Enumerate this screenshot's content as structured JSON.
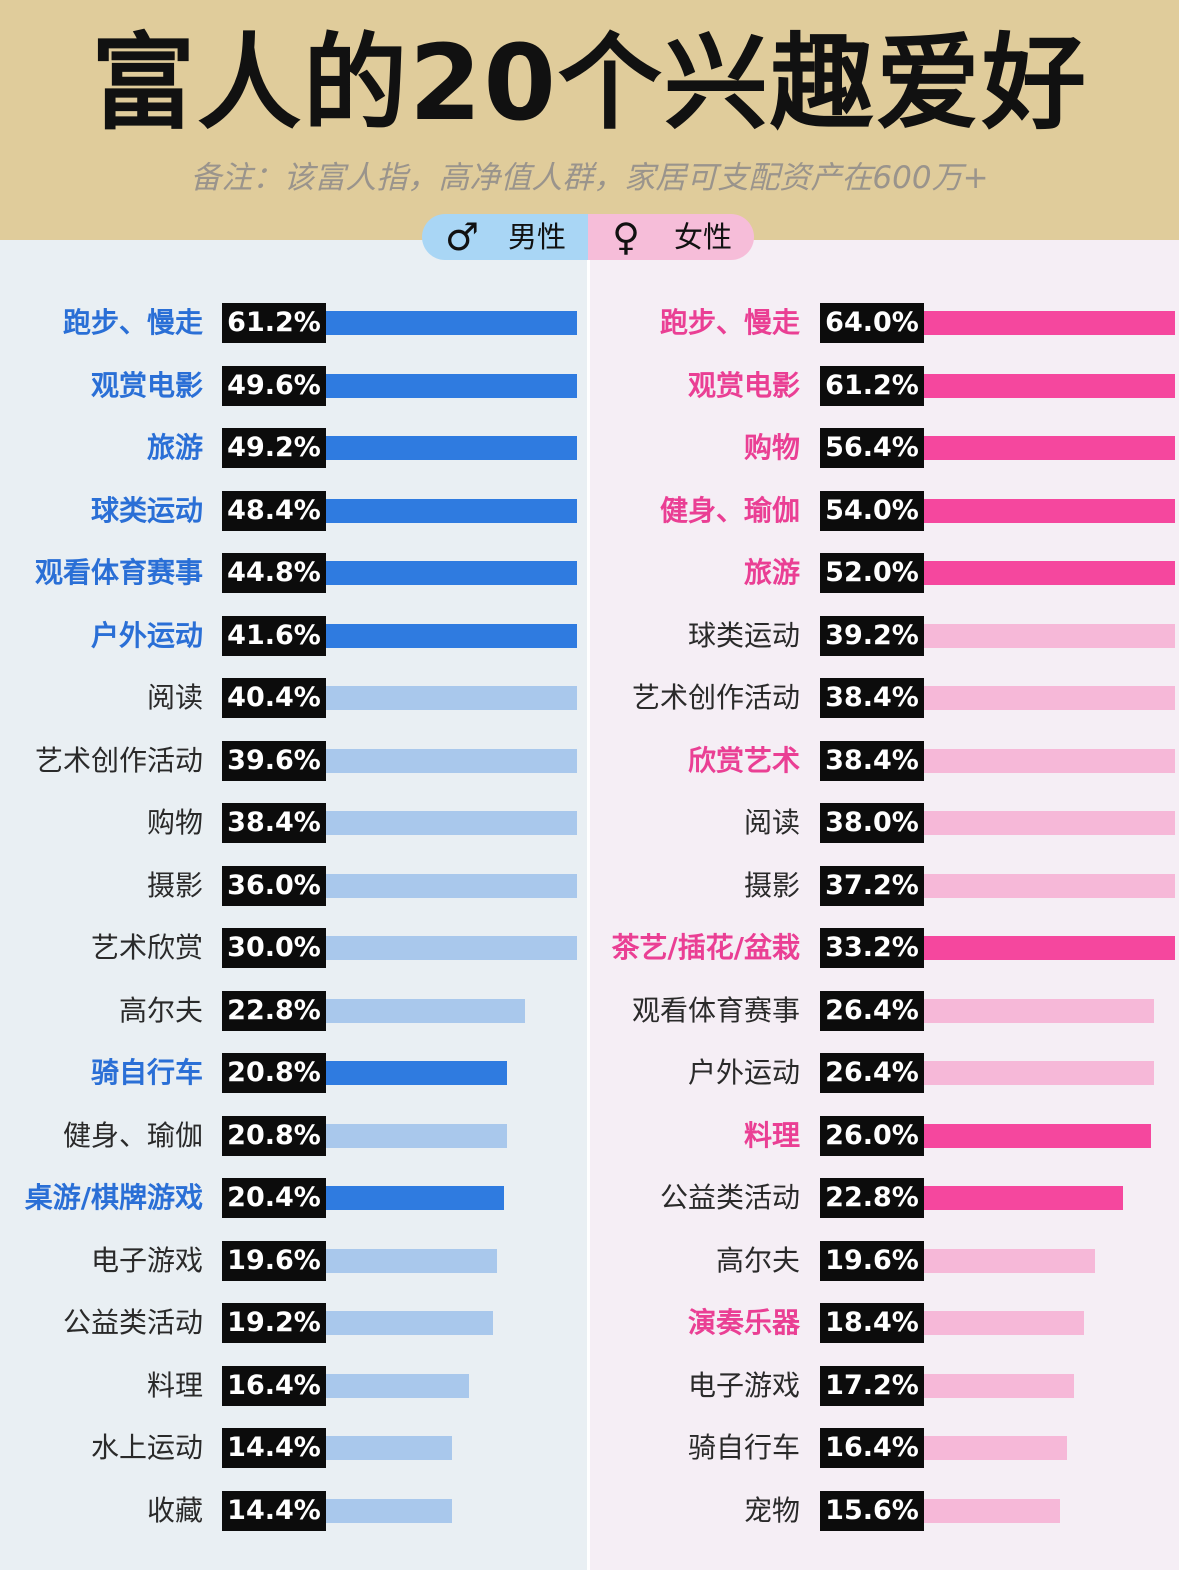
{
  "title": "富人的20个兴趣爱好",
  "subtitle": "备注：该富人指，高净值人群，家居可支配资产在600万+",
  "legend": {
    "male_icon": "male-symbol-icon",
    "male_label": "男性",
    "female_icon": "female-symbol-icon",
    "female_label": "女性"
  },
  "colors": {
    "header_bg": "#e0cc9b",
    "male_highlight": "#2f7be0",
    "male_light": "#a9c8ec",
    "female_highlight": "#f5479e",
    "female_light": "#f6b8d8",
    "male_text_highlight": "#2a6fd6",
    "female_text_highlight": "#ea3f94"
  },
  "chart_data": [
    {
      "type": "bar",
      "series": [
        {
          "name": "男性"
        }
      ],
      "categories": [
        "跑步、慢走",
        "观赏电影",
        "旅游",
        "球类运动",
        "观看体育赛事",
        "户外运动",
        "阅读",
        "艺术创作活动",
        "购物",
        "摄影",
        "艺术欣赏",
        "高尔夫",
        "骑自行车",
        "健身、瑜伽",
        "桌游/棋牌游戏",
        "电子游戏",
        "公益类活动",
        "料理",
        "水上运动",
        "收藏"
      ],
      "values": [
        61.2,
        49.6,
        49.2,
        48.4,
        44.8,
        41.6,
        40.4,
        39.6,
        38.4,
        36.0,
        30.0,
        22.8,
        20.8,
        20.8,
        20.4,
        19.6,
        19.2,
        16.4,
        14.4,
        14.4
      ],
      "labels": [
        "61.2%",
        "49.6%",
        "49.2%",
        "48.4%",
        "44.8%",
        "41.6%",
        "40.4%",
        "39.6%",
        "38.4%",
        "36.0%",
        "30.0%",
        "22.8%",
        "20.8%",
        "20.8%",
        "20.4%",
        "19.6%",
        "19.2%",
        "16.4%",
        "14.4%",
        "14.4%"
      ],
      "highlighted": [
        true,
        true,
        true,
        true,
        true,
        true,
        false,
        false,
        false,
        false,
        false,
        false,
        true,
        false,
        true,
        false,
        false,
        false,
        false,
        false
      ],
      "unit": "%"
    },
    {
      "type": "bar",
      "series": [
        {
          "name": "女性"
        }
      ],
      "categories": [
        "跑步、慢走",
        "观赏电影",
        "购物",
        "健身、瑜伽",
        "旅游",
        "球类运动",
        "艺术创作活动",
        "欣赏艺术",
        "阅读",
        "摄影",
        "茶艺/插花/盆栽",
        "观看体育赛事",
        "户外运动",
        "料理",
        "公益类活动",
        "高尔夫",
        "演奏乐器",
        "电子游戏",
        "骑自行车",
        "宠物"
      ],
      "values": [
        64.0,
        61.2,
        56.4,
        54.0,
        52.0,
        39.2,
        38.4,
        38.4,
        38.0,
        37.2,
        33.2,
        26.4,
        26.4,
        26.0,
        22.8,
        19.6,
        18.4,
        17.2,
        16.4,
        15.6
      ],
      "labels": [
        "64.0%",
        "61.2%",
        "56.4%",
        "54.0%",
        "52.0%",
        "39.2%",
        "38.4%",
        "38.4%",
        "38.0%",
        "37.2%",
        "33.2%",
        "26.4%",
        "26.4%",
        "26.0%",
        "22.8%",
        "19.6%",
        "18.4%",
        "17.2%",
        "16.4%",
        "15.6%"
      ],
      "highlighted": [
        true,
        true,
        true,
        true,
        true,
        false,
        false,
        true,
        false,
        false,
        true,
        false,
        false,
        true,
        false,
        false,
        true,
        false,
        false,
        false
      ],
      "bar_highlighted": [
        true,
        true,
        true,
        true,
        true,
        false,
        false,
        false,
        false,
        false,
        true,
        false,
        false,
        true,
        true,
        false,
        false,
        false,
        false,
        false
      ],
      "unit": "%"
    }
  ]
}
